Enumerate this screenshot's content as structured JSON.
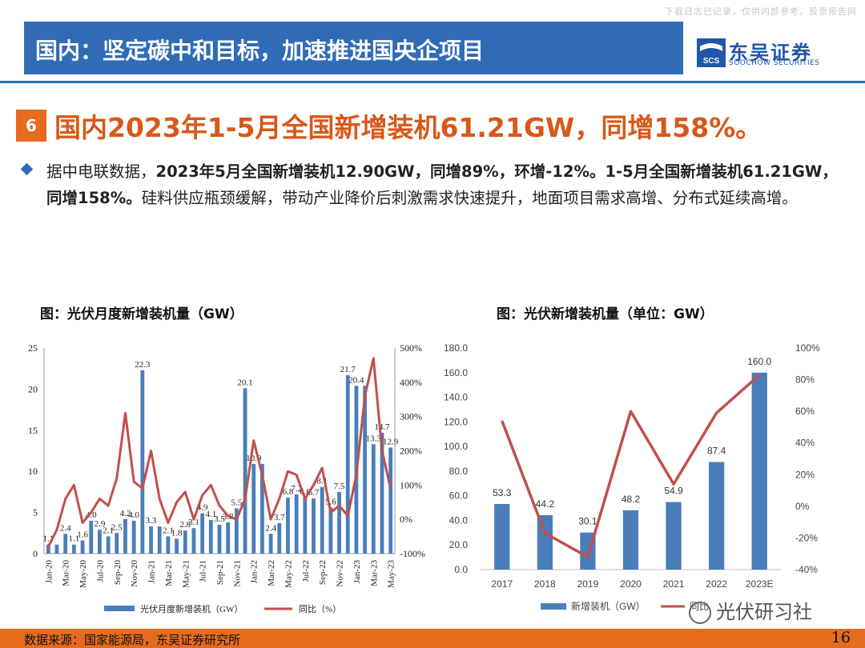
{
  "watermark": "下载日志已记录，仅供内部参考，股票报告网",
  "header": {
    "title": "国内：坚定碳中和目标，加速推进国央企项目",
    "logo_cn": "东吴证券",
    "logo_en": "SOOCHOW SECURITIES",
    "logo_mark": "SCS"
  },
  "section": {
    "number": "6",
    "title": "国内2023年1-5月全国新增装机61.21GW，同增158%。"
  },
  "bullet": {
    "prefix": "据中电联数据，",
    "bold": "2023年5月全国新增装机12.90GW，同增89%，环增-12%。1-5月全国新增装机61.21GW，同增158%。",
    "rest": "硅料供应瓶颈缓解，带动产业降价后刺激需求快速提升，地面项目需求高增、分布式延续高增。"
  },
  "figures": {
    "fig1_title": "图：光伏月度新增装机量（GW）",
    "fig2_title": "图：光伏新增装机量（单位：GW）"
  },
  "chart_data": [
    {
      "type": "bar",
      "title": "光伏月度新增装机量（GW）",
      "ylim": [
        0,
        25
      ],
      "y_ticks": [
        0,
        5,
        10,
        15,
        20,
        25
      ],
      "y2lim": [
        -100,
        500
      ],
      "y2_ticks": [
        "-100%",
        "0%",
        "100%",
        "200%",
        "300%",
        "400%",
        "500%"
      ],
      "categories": [
        "Jan-20",
        "Feb-20",
        "Mar-20",
        "Apr-20",
        "May-20",
        "Jun-20",
        "Jul-20",
        "Aug-20",
        "Sep-20",
        "Oct-20",
        "Nov-20",
        "Dec-20",
        "Jan-21",
        "Feb-21",
        "Mar-21",
        "Apr-21",
        "May-21",
        "Jun-21",
        "Jul-21",
        "Aug-21",
        "Sep-21",
        "Oct-21",
        "Nov-21",
        "Dec-21",
        "Jan-22",
        "Feb-22",
        "Mar-22",
        "Apr-22",
        "May-22",
        "Jun-22",
        "Jul-22",
        "Aug-22",
        "Sep-22",
        "Oct-22",
        "Nov-22",
        "Dec-22",
        "Jan-23",
        "Feb-23",
        "Mar-23",
        "Apr-23",
        "May-23"
      ],
      "tick_labels": [
        "Jan-20",
        "Mar-20",
        "May-20",
        "Jul-20",
        "Sep-20",
        "Nov-20",
        "Jan-21",
        "Mar-21",
        "May-21",
        "Jul-21",
        "Sep-21",
        "Nov-21",
        "Jan-22",
        "Mar-22",
        "May-22",
        "Jul-22",
        "Sep-22",
        "Nov-22",
        "Jan-23",
        "Mar-23",
        "May-23"
      ],
      "series": [
        {
          "name": "光伏月度新增装机（GW）",
          "type": "bar",
          "color": "#4a7ebb",
          "values": [
            1.1,
            1.1,
            2.4,
            1.1,
            1.6,
            4.0,
            2.9,
            2.1,
            2.5,
            4.2,
            4.0,
            22.3,
            3.3,
            3.3,
            2.1,
            1.8,
            2.8,
            3.1,
            4.9,
            4.1,
            3.5,
            3.8,
            5.5,
            20.1,
            10.9,
            10.9,
            2.4,
            3.7,
            6.8,
            7.2,
            6.8,
            6.7,
            8.1,
            5.6,
            7.5,
            21.7,
            20.4,
            20.4,
            13.3,
            14.7,
            12.9
          ]
        },
        {
          "name": "同比（%）",
          "type": "line",
          "color": "#c0504d",
          "values": [
            -80,
            -30,
            60,
            100,
            -10,
            20,
            60,
            40,
            120,
            310,
            110,
            90,
            200,
            60,
            -10,
            50,
            80,
            0,
            70,
            100,
            40,
            10,
            0,
            60,
            230,
            130,
            0,
            60,
            140,
            130,
            60,
            100,
            150,
            20,
            40,
            10,
            130,
            360,
            470,
            200,
            90
          ]
        }
      ],
      "data_labels": [
        "1.1",
        "2.4",
        "1.1",
        "1.6",
        "4.0",
        "2.9",
        "2.1",
        "2.5",
        "4.2",
        "4.0",
        "22.3",
        "3.3",
        "2.1",
        "1.8",
        "2.8",
        "3.1",
        "4.9",
        "4.1",
        "3.5",
        "3.8",
        "5.5",
        "20.1",
        "10.9",
        "2.4",
        "3.7",
        "6.8",
        "7.2",
        "6.8",
        "6.7",
        "8.1",
        "5.6",
        "7.5",
        "21.7",
        "20.4",
        "13.3",
        "14.7",
        "12.9"
      ],
      "legend": [
        "光伏月度新增装机（GW）",
        "同比（%）"
      ]
    },
    {
      "type": "bar",
      "title": "光伏新增装机量（单位：GW）",
      "categories": [
        "2017",
        "2018",
        "2019",
        "2020",
        "2021",
        "2022",
        "2023E"
      ],
      "ylim": [
        0,
        180
      ],
      "y_ticks": [
        "0.0",
        "20.0",
        "40.0",
        "60.0",
        "80.0",
        "100.0",
        "120.0",
        "140.0",
        "160.0",
        "180.0"
      ],
      "y2lim": [
        -40,
        100
      ],
      "y2_ticks": [
        "-40%",
        "-20%",
        "0%",
        "20%",
        "40%",
        "60%",
        "80%",
        "100%"
      ],
      "series": [
        {
          "name": "新增装机（GW）",
          "type": "bar",
          "color": "#4a7ebb",
          "values": [
            53.3,
            44.2,
            30.1,
            48.2,
            54.9,
            87.4,
            160.0
          ],
          "labels": [
            "53.3",
            "44.2",
            "30.1",
            "48.2",
            "54.9",
            "87.4",
            "160.0"
          ]
        },
        {
          "name": "同比",
          "type": "line",
          "color": "#c0504d",
          "values": [
            54,
            -17,
            -32,
            60,
            14,
            59,
            83
          ]
        }
      ],
      "legend": [
        "新增装机（GW）",
        "同比"
      ]
    }
  ],
  "wechat": "光伏研习社",
  "footer": {
    "source": "数据来源：国家能源局，东吴证券研究所",
    "page": "16"
  }
}
